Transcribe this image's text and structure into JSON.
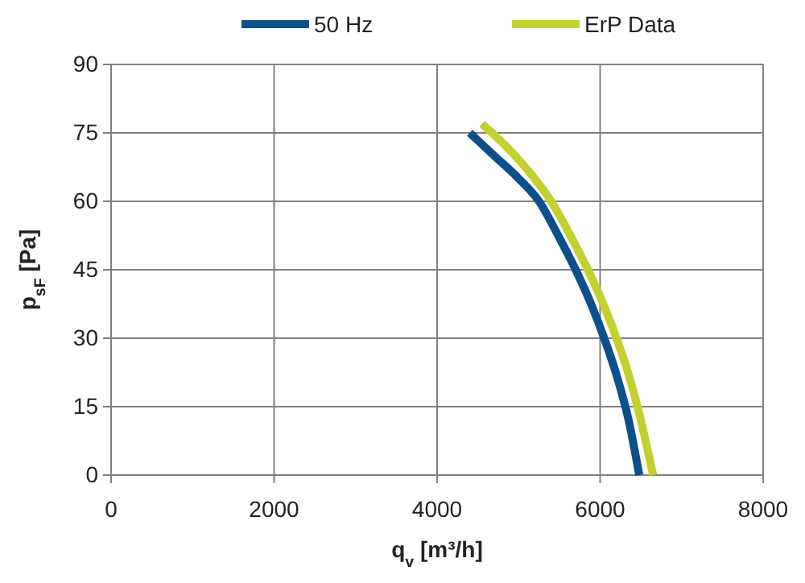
{
  "chart_data": {
    "type": "line",
    "xlabel": "q$_{v}$ [m³/h]",
    "ylabel": "p$_{sF}$ [Pa]",
    "xlim": [
      0,
      8000
    ],
    "xticks": [
      0,
      2000,
      4000,
      6000,
      8000
    ],
    "ylim": [
      0,
      90
    ],
    "yticks": [
      0,
      15,
      30,
      45,
      60,
      75,
      90
    ],
    "grid": true,
    "legend": "top",
    "marker": "none",
    "line_style": "solid",
    "series": [
      {
        "name": "50 Hz",
        "color": "#0d4f8b",
        "x": [
          4400,
          4700,
          5000,
          5250,
          5500,
          5700,
          5900,
          6050,
          6200,
          6350,
          6480
        ],
        "values": [
          75,
          70,
          65,
          60,
          52,
          45,
          37,
          30,
          22,
          12,
          0
        ]
      },
      {
        "name": "ErP Data",
        "color": "#c3d130",
        "x": [
          4550,
          4850,
          5150,
          5400,
          5650,
          5850,
          6050,
          6200,
          6350,
          6500,
          6650
        ],
        "values": [
          77,
          72,
          66,
          60,
          52,
          45,
          37,
          30,
          22,
          12,
          0
        ]
      }
    ]
  }
}
